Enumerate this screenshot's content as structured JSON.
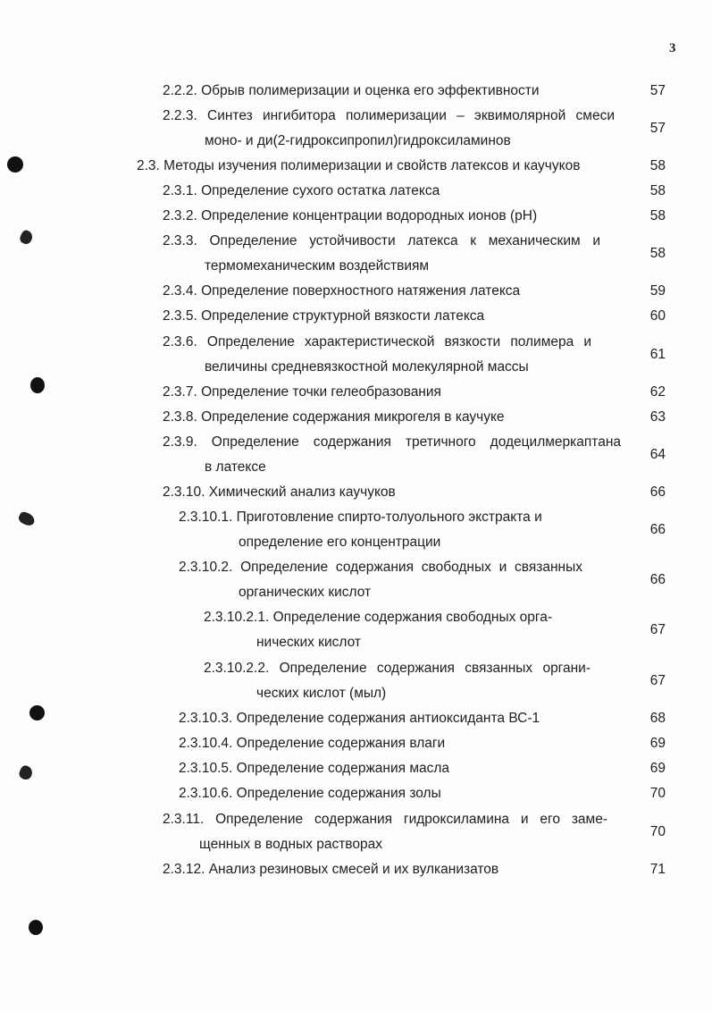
{
  "page_number": "3",
  "entries": [
    {
      "number": "2.2.2.",
      "title": "Обрыв полимеризации и оценка его эффективности",
      "page": "57"
    },
    {
      "number": "2.2.3.",
      "title": "Синтез ингибитора полимеризации – эквимолярной смеси",
      "cont": "моно- и ди(2-гидроксипропил)гидроксиламинов",
      "page": "57"
    },
    {
      "number": "2.3.",
      "title": "Методы изучения полимеризации и свойств латексов и каучуков",
      "page": "58"
    },
    {
      "number": "2.3.1.",
      "title": "Определение сухого остатка латекса",
      "page": "58"
    },
    {
      "number": "2.3.2.",
      "title": "Определение концентрации водородных ионов (pH)",
      "page": "58"
    },
    {
      "number": "2.3.3.",
      "title": "Определение устойчивости латекса к механическим и",
      "cont": "термомеханическим воздействиям",
      "page": "58"
    },
    {
      "number": "2.3.4.",
      "title": "Определение поверхностного натяжения латекса",
      "page": "59"
    },
    {
      "number": "2.3.5.",
      "title": "Определение структурной вязкости латекса",
      "page": "60"
    },
    {
      "number": "2.3.6.",
      "title": "Определение характеристической вязкости полимера и",
      "cont": "величины средневязкостной молекулярной массы",
      "page": "61"
    },
    {
      "number": "2.3.7.",
      "title": "Определение точки гелеобразования",
      "page": "62"
    },
    {
      "number": "2.3.8.",
      "title": "Определение содержания микрогеля в каучуке",
      "page": "63"
    },
    {
      "number": "2.3.9.",
      "title": "Определение содержания третичного додецилмеркаптана",
      "cont": "в латексе",
      "page": "64"
    },
    {
      "number": "2.3.10.",
      "title": "Химический анализ каучуков",
      "page": "66"
    },
    {
      "number": "2.3.10.1.",
      "title": "Приготовление спирто-толуольного экстракта и",
      "cont": "определение его концентрации",
      "page": "66"
    },
    {
      "number": "2.3.10.2.",
      "title": "Определение содержания свободных и связанных",
      "cont": "органических кислот",
      "page": "66"
    },
    {
      "number": "2.3.10.2.1.",
      "title": "Определение содержания свободных орга-",
      "cont": "нических кислот",
      "page": "67"
    },
    {
      "number": "2.3.10.2.2.",
      "title": "Определение содержания связанных органи-",
      "cont": "ческих кислот (мыл)",
      "page": "67"
    },
    {
      "number": "2.3.10.3.",
      "title": "Определение содержания антиоксиданта ВС-1",
      "page": "68"
    },
    {
      "number": "2.3.10.4.",
      "title": "Определение содержания влаги",
      "page": "69"
    },
    {
      "number": "2.3.10.5.",
      "title": "Определение содержания масла",
      "page": "69"
    },
    {
      "number": "2.3.10.6.",
      "title": "Определение содержания золы",
      "page": "70"
    },
    {
      "number": "2.3.11.",
      "title": "Определение содержания гидроксиламина и его заме-",
      "cont": "щенных в водных растворах",
      "page": "70"
    },
    {
      "number": "2.3.12.",
      "title": "Анализ резиновых смесей и их вулканизатов",
      "page": "71"
    }
  ]
}
